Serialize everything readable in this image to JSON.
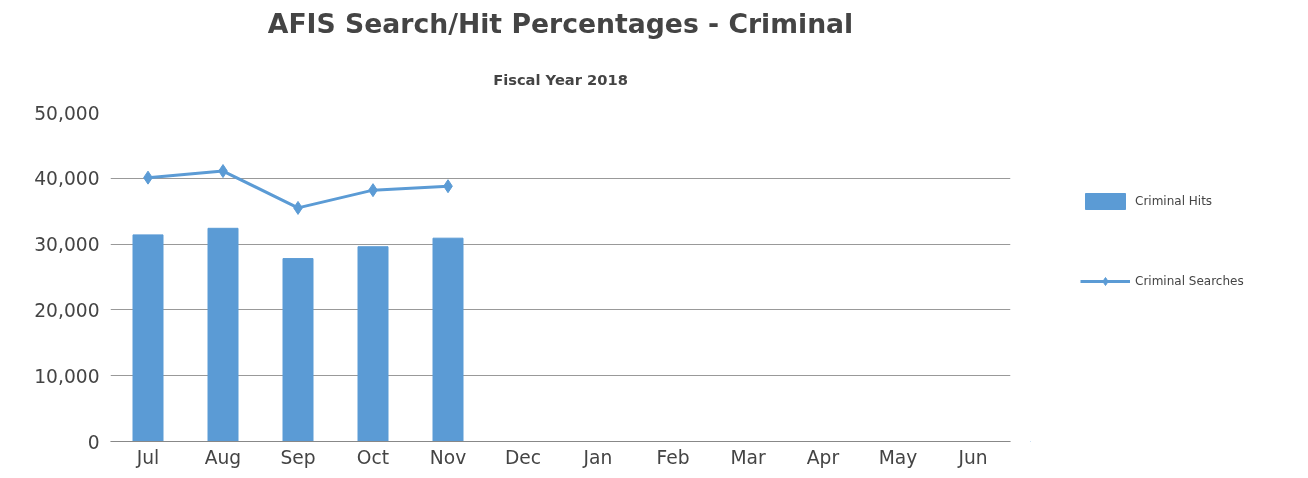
{
  "chart_data": {
    "type": "bar",
    "title": "AFIS Search/Hit Percentages - Criminal",
    "subtitle": "Fiscal Year 2018",
    "categories": [
      "Jul",
      "Aug",
      "Sep",
      "Oct",
      "Nov",
      "Dec",
      "Jan",
      "Feb",
      "Mar",
      "Apr",
      "May",
      "Jun"
    ],
    "series": [
      {
        "name": "Criminal Hits",
        "color": "#5b9bd5",
        "values": [
          31400,
          32400,
          27800,
          29600,
          30900,
          null,
          null,
          null,
          null,
          null,
          null,
          null
        ]
      },
      {
        "name": "Criminal Searches",
        "type": "line",
        "color": "#5b9bd5",
        "marker": "diamond",
        "values": [
          40100,
          41100,
          35500,
          38200,
          38800,
          null,
          null,
          null,
          null,
          null,
          null,
          null
        ]
      }
    ],
    "ylim": [
      0,
      50000
    ],
    "yticks": [
      {
        "value": 0,
        "label": "0"
      },
      {
        "value": 10000,
        "label": "10,000"
      },
      {
        "value": 20000,
        "label": "20,000"
      },
      {
        "value": 30000,
        "label": "30,000"
      },
      {
        "value": 40000,
        "label": "40,000"
      },
      {
        "value": 50000,
        "label": "50,000"
      }
    ],
    "grid": "y",
    "legend": "right"
  }
}
